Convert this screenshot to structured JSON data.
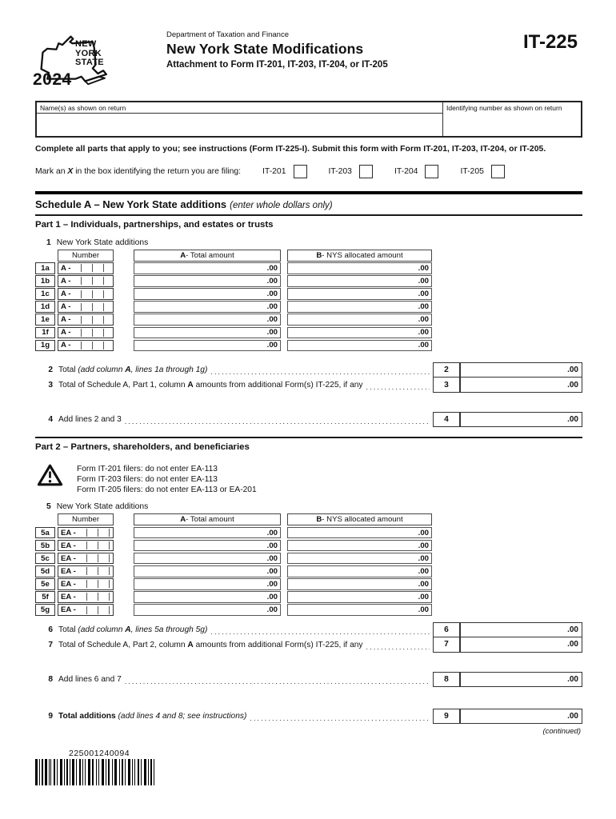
{
  "header": {
    "year": "2024",
    "state_line1": "NEW",
    "state_line2": "YORK",
    "state_line3": "STATE",
    "department": "Department of Taxation and Finance",
    "title": "New York State Modifications",
    "subtitle": "Attachment to Form IT-201, IT-203, IT-204, or IT-205",
    "form_number": "IT-225"
  },
  "name_box": {
    "name_label": "Name(s) as shown on return",
    "name_value": "",
    "id_label": "Identifying number as shown on return",
    "id_value": ""
  },
  "filing": {
    "complete_instruction": "Complete all parts that apply to you; see instructions (Form IT-225-I). Submit this form with Form IT-201, IT-203, IT-204, or IT-205.",
    "mark_segments": [
      {
        "t": "Mark an "
      },
      {
        "t": "X",
        "b": 1,
        "i": 1
      },
      {
        "t": " in the box identifying the return you are filing:"
      }
    ],
    "options": [
      {
        "label": "IT-201",
        "checked": false
      },
      {
        "label": "IT-203",
        "checked": false
      },
      {
        "label": "IT-204",
        "checked": false
      },
      {
        "label": "IT-205",
        "checked": false
      }
    ]
  },
  "schedule_a": {
    "title": "Schedule A – New York State additions",
    "note": "(enter whole dollars only)",
    "part1": {
      "title": "Part 1 – Individuals, partnerships, and estates or trusts",
      "intro_num": "1",
      "intro_text": "New York State additions",
      "columns": {
        "number": "Number",
        "a_segments": [
          {
            "t": "A",
            "b": 1
          },
          {
            "t": " - Total amount"
          }
        ],
        "b_segments": [
          {
            "t": "B",
            "b": 1
          },
          {
            "t": " - NYS allocated amount"
          }
        ]
      },
      "rows": [
        {
          "id": "1a",
          "prefix": "A -",
          "a": ".00",
          "b": ".00"
        },
        {
          "id": "1b",
          "prefix": "A -",
          "a": ".00",
          "b": ".00"
        },
        {
          "id": "1c",
          "prefix": "A -",
          "a": ".00",
          "b": ".00"
        },
        {
          "id": "1d",
          "prefix": "A -",
          "a": ".00",
          "b": ".00"
        },
        {
          "id": "1e",
          "prefix": "A -",
          "a": ".00",
          "b": ".00"
        },
        {
          "id": "1f",
          "prefix": "A -",
          "a": ".00",
          "b": ".00"
        },
        {
          "id": "1g",
          "prefix": "A -",
          "a": ".00",
          "b": ".00"
        }
      ],
      "totals": [
        {
          "num": "2",
          "segments": [
            {
              "t": "Total "
            },
            {
              "t": "(add column ",
              "i": 1
            },
            {
              "t": "A",
              "b": 1,
              "i": 1
            },
            {
              "t": ", lines 1a through 1g)",
              "i": 1
            }
          ],
          "value": ".00"
        },
        {
          "num": "3",
          "segments": [
            {
              "t": "Total of Schedule A, Part 1, column "
            },
            {
              "t": "A",
              "b": 1
            },
            {
              "t": " amounts from additional Form(s) IT-225, if any "
            }
          ],
          "value": ".00"
        },
        {
          "num": "4",
          "segments": [
            {
              "t": "Add lines 2 and 3 "
            }
          ],
          "value": ".00"
        }
      ]
    },
    "part2": {
      "title": "Part 2 – Partners, shareholders, and beneficiaries",
      "warnings": [
        "Form IT-201 filers: do not enter EA-113",
        "Form IT-203 filers: do not enter EA-113",
        "Form IT-205 filers: do not enter EA-113 or EA-201"
      ],
      "intro_num": "5",
      "intro_text": "New York State additions",
      "columns": {
        "number": "Number",
        "a_segments": [
          {
            "t": "A",
            "b": 1
          },
          {
            "t": " - Total amount"
          }
        ],
        "b_segments": [
          {
            "t": "B",
            "b": 1
          },
          {
            "t": " - NYS allocated amount"
          }
        ]
      },
      "rows": [
        {
          "id": "5a",
          "prefix": "EA -",
          "a": ".00",
          "b": ".00"
        },
        {
          "id": "5b",
          "prefix": "EA -",
          "a": ".00",
          "b": ".00"
        },
        {
          "id": "5c",
          "prefix": "EA -",
          "a": ".00",
          "b": ".00"
        },
        {
          "id": "5d",
          "prefix": "EA -",
          "a": ".00",
          "b": ".00"
        },
        {
          "id": "5e",
          "prefix": "EA -",
          "a": ".00",
          "b": ".00"
        },
        {
          "id": "5f",
          "prefix": "EA -",
          "a": ".00",
          "b": ".00"
        },
        {
          "id": "5g",
          "prefix": "EA -",
          "a": ".00",
          "b": ".00"
        }
      ],
      "totals": [
        {
          "num": "6",
          "segments": [
            {
              "t": "Total "
            },
            {
              "t": "(add column ",
              "i": 1
            },
            {
              "t": "A",
              "b": 1,
              "i": 1
            },
            {
              "t": ", lines 5a through 5g)",
              "i": 1
            }
          ],
          "value": ".00"
        },
        {
          "num": "7",
          "segments": [
            {
              "t": "Total of Schedule A, Part 2, column "
            },
            {
              "t": "A",
              "b": 1
            },
            {
              "t": " amounts from additional Form(s) IT-225, if any "
            }
          ],
          "value": ".00"
        },
        {
          "num": "8",
          "segments": [
            {
              "t": "Add lines 6 and 7 "
            }
          ],
          "value": ".00"
        }
      ],
      "grand_total": {
        "num": "9",
        "segments": [
          {
            "t": "Total additions ",
            "b": 1
          },
          {
            "t": "(add lines 4 and 8; see instructions)",
            "i": 1
          }
        ],
        "value": ".00"
      }
    }
  },
  "footer": {
    "continued": "(continued)",
    "barcode_number": "225001240094"
  }
}
